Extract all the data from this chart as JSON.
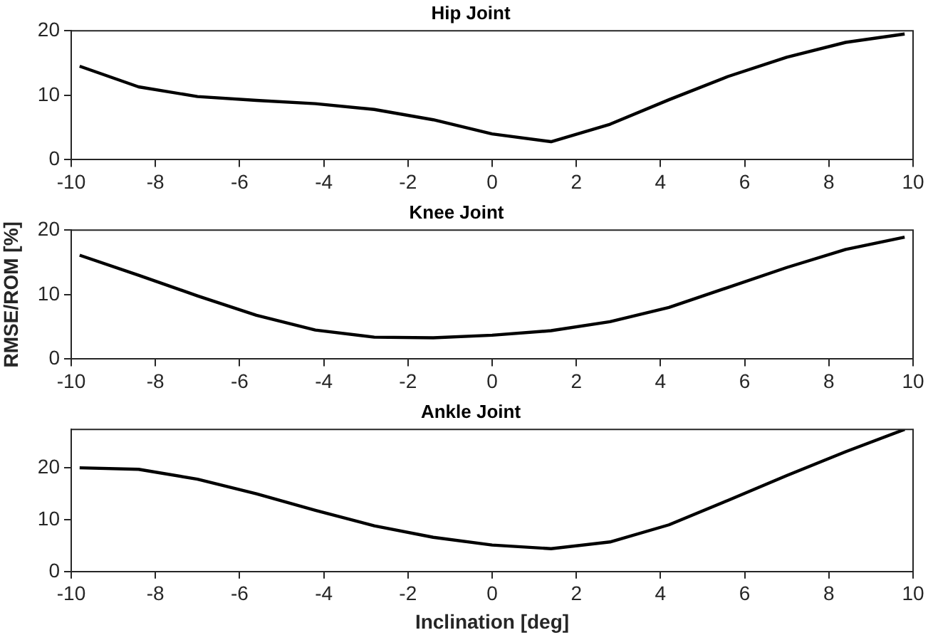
{
  "chart_data": [
    {
      "type": "line",
      "title": "Hip Joint",
      "x": [
        -9.8,
        -8.4,
        -7,
        -5.6,
        -4.2,
        -2.8,
        -1.4,
        0,
        1.4,
        2.8,
        4.2,
        5.6,
        7,
        8.4,
        9.8
      ],
      "series": [
        {
          "color": "#000000",
          "values": [
            14.5,
            11.3,
            9.8,
            9.2,
            8.7,
            7.8,
            6.2,
            4.0,
            2.8,
            5.5,
            9.3,
            12.9,
            15.9,
            18.2,
            19.5
          ]
        }
      ],
      "xlim": [
        -10,
        10
      ],
      "xticks": [
        -10,
        -8,
        -6,
        -4,
        -2,
        0,
        2,
        4,
        6,
        8,
        10
      ],
      "ylim": [
        0,
        20
      ],
      "yticks": [
        0,
        10,
        20
      ],
      "grid": false,
      "legend": false,
      "marker": "none",
      "line_style": "solid"
    },
    {
      "type": "line",
      "title": "Knee Joint",
      "ylabel": "RMSE/ROM [%]",
      "x": [
        -9.8,
        -8.4,
        -7,
        -5.6,
        -4.2,
        -2.8,
        -1.4,
        0,
        1.4,
        2.8,
        4.2,
        5.6,
        7,
        8.4,
        9.8
      ],
      "series": [
        {
          "color": "#000000",
          "values": [
            16.1,
            13.0,
            9.8,
            6.8,
            4.5,
            3.4,
            3.3,
            3.7,
            4.4,
            5.8,
            8.0,
            11.1,
            14.2,
            17.0,
            18.9
          ]
        }
      ],
      "xlim": [
        -10,
        10
      ],
      "xticks": [
        -10,
        -8,
        -6,
        -4,
        -2,
        0,
        2,
        4,
        6,
        8,
        10
      ],
      "ylim": [
        0,
        20
      ],
      "yticks": [
        0,
        10,
        20
      ],
      "grid": false,
      "legend": false,
      "marker": "none",
      "line_style": "solid"
    },
    {
      "type": "line",
      "title": "Ankle Joint",
      "xlabel": "Inclination [deg]",
      "x": [
        -9.8,
        -8.4,
        -7,
        -5.6,
        -4.2,
        -2.8,
        -1.4,
        0,
        1.4,
        2.8,
        4.2,
        5.6,
        7,
        8.4,
        9.8
      ],
      "series": [
        {
          "color": "#000000",
          "values": [
            20.0,
            19.7,
            17.8,
            15.0,
            11.8,
            8.8,
            6.6,
            5.1,
            4.4,
            5.7,
            9.0,
            13.7,
            18.5,
            23.1,
            27.4
          ]
        }
      ],
      "xlim": [
        -10,
        10
      ],
      "xticks": [
        -10,
        -8,
        -6,
        -4,
        -2,
        0,
        2,
        4,
        6,
        8,
        10
      ],
      "ylim": [
        0,
        27.4
      ],
      "yticks": [
        0,
        10,
        20
      ],
      "grid": false,
      "legend": false,
      "marker": "none",
      "line_style": "solid"
    }
  ]
}
